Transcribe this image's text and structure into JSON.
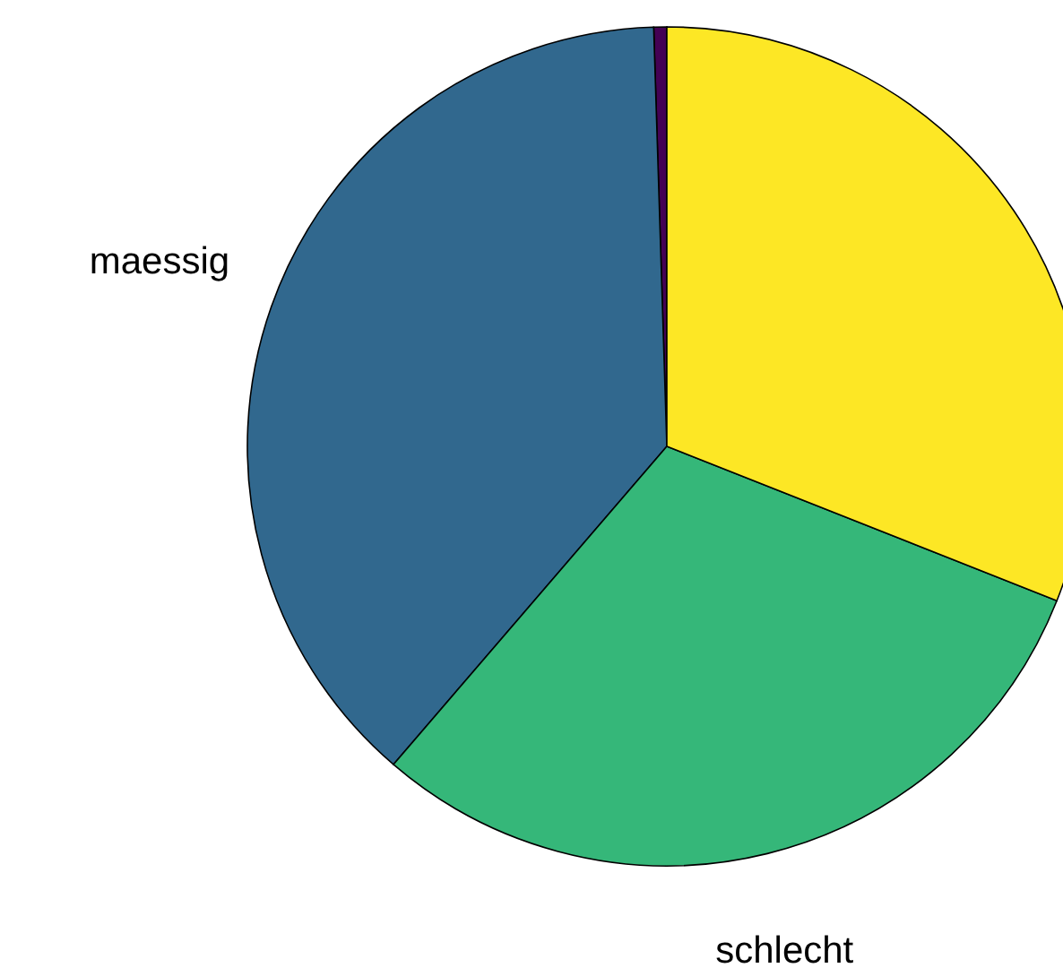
{
  "chart_data": {
    "type": "pie",
    "categories": [
      null,
      "maessig",
      "schlecht",
      null
    ],
    "values": [
      0.5,
      38.2,
      30.3,
      31.0
    ],
    "colors": [
      "#440154",
      "#31688e",
      "#35b779",
      "#fde725"
    ],
    "legend": false
  }
}
